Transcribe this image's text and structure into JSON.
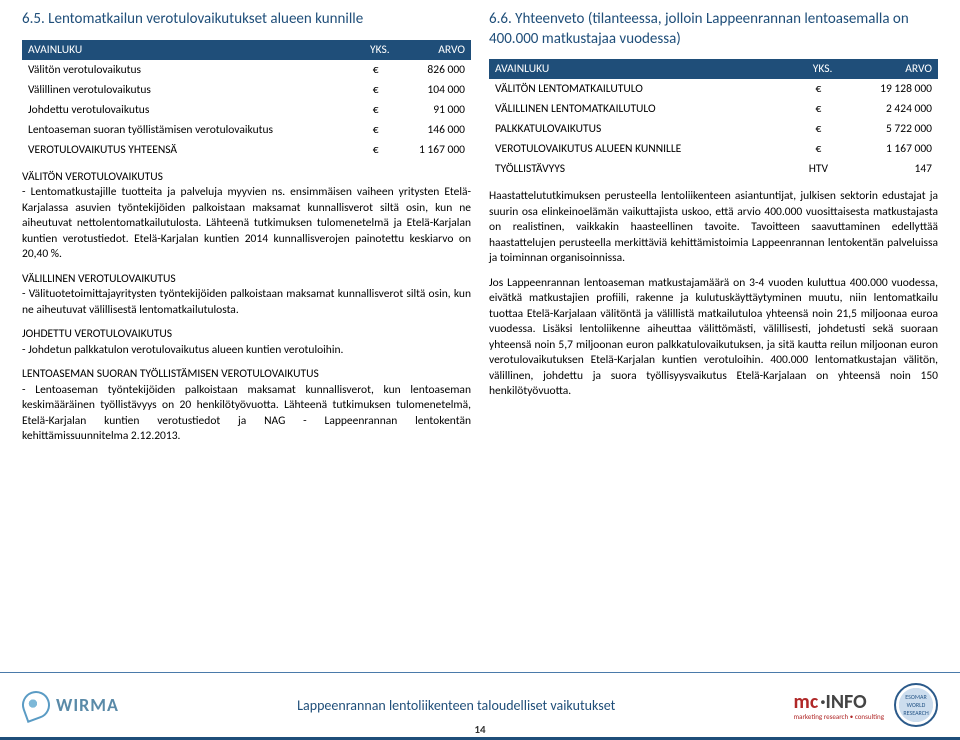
{
  "left": {
    "heading": "6.5. Lentomatkailun verotulovaikutukset alueen kunnille",
    "table": {
      "headers": [
        "AVAINLUKU",
        "YKS.",
        "ARVO"
      ],
      "rows": [
        [
          "Välitön verotulovaikutus",
          "€",
          "826 000"
        ],
        [
          "Välillinen verotulovaikutus",
          "€",
          "104 000"
        ],
        [
          "Johdettu verotulovaikutus",
          "€",
          "91 000"
        ],
        [
          "Lentoaseman suoran työllistämisen verotulovaikutus",
          "€",
          "146 000"
        ],
        [
          "VEROTULOVAIKUTUS YHTEENSÄ",
          "€",
          "1 167 000"
        ]
      ]
    },
    "p1_label": "VÄLITÖN VEROTULOVAIKUTUS",
    "p1": "- Lentomatkustajille tuotteita ja palveluja myyvien ns. ensimmäisen vaiheen yritysten Etelä-Karjalassa asuvien työntekijöiden palkoistaan maksamat kunnallisverot siltä osin, kun ne aiheutuvat nettolentomatkailutulosta. Lähteenä tutkimuksen tulomenetelmä ja Etelä-Karjalan kuntien verotustiedot. Etelä-Karjalan kuntien 2014 kunnallisverojen painotettu keskiarvo on 20,40 %.",
    "p2_label": "VÄLILLINEN VEROTULOVAIKUTUS",
    "p2": "- Välituotetoimittajayritysten työntekijöiden palkoistaan maksamat kunnallisverot siltä osin, kun ne aiheutuvat välillisestä lentomatkailutulosta.",
    "p3_label": "JOHDETTU VEROTULOVAIKUTUS",
    "p3": "- Johdetun palkkatulon verotulovaikutus alueen kuntien verotuloihin.",
    "p4_label": "LENTOASEMAN SUORAN TYÖLLISTÄMISEN VEROTULOVAIKUTUS",
    "p4": "- Lentoaseman työntekijöiden palkoistaan maksamat kunnallisverot, kun lentoaseman keskimääräinen työllistävyys on 20 henkilötyövuotta. Lähteenä tutkimuksen tulomenetelmä, Etelä-Karjalan kuntien verotustiedot ja NAG - Lappeenrannan lentokentän kehittämissuunnitelma 2.12.2013."
  },
  "right": {
    "heading": "6.6. Yhteenveto (tilanteessa, jolloin Lappeenrannan lentoasemalla on 400.000 matkustajaa vuodessa)",
    "table": {
      "headers": [
        "AVAINLUKU",
        "YKS.",
        "ARVO"
      ],
      "rows": [
        [
          "VÄLITÖN LENTOMATKAILUTULO",
          "€",
          "19 128 000"
        ],
        [
          "VÄLILLINEN LENTOMATKAILUTULO",
          "€",
          "2 424 000"
        ],
        [
          "PALKKATULOVAIKUTUS",
          "€",
          "5 722 000"
        ],
        [
          "VEROTULOVAIKUTUS ALUEEN KUNNILLE",
          "€",
          "1 167 000"
        ],
        [
          "TYÖLLISTÄVYYS",
          "HTV",
          "147"
        ]
      ]
    },
    "p1": "Haastattelututkimuksen perusteella lentoliikenteen asiantuntijat, julkisen sektorin edustajat ja suurin osa elinkeinoelämän vaikuttajista uskoo, että arvio 400.000 vuosittaisesta matkustajasta on realistinen, vaikkakin haasteellinen tavoite. Tavoitteen saavuttaminen edellyttää haastattelujen perusteella merkittäviä kehittämistoimia Lappeenrannan lentokentän palveluissa ja toiminnan organisoinnissa.",
    "p2": "Jos Lappeenrannan lentoaseman matkustajamäärä on 3-4 vuoden kuluttua 400.000 vuodessa, eivätkä matkustajien profiili, rakenne ja kulutuskäyttäytyminen muutu, niin lentomatkailu tuottaa Etelä-Karjalaan välitöntä ja välillistä matkailutuloa yhteensä noin 21,5 miljoonaa euroa vuodessa. Lisäksi lentoliikenne aiheuttaa välittömästi, välillisesti, johdetusti sekä suoraan yhteensä noin 5,7 miljoonan euron palkkatulovaikutuksen, ja sitä kautta reilun miljoonan euron verotulovaikutuksen Etelä-Karjalan kuntien verotuloihin. 400.000 lentomatkustajan välitön, välillinen, johdettu ja suora työllisyysvaikutus Etelä-Karjalaan on yhteensä noin 150 henkilötyövuotta."
  },
  "footer": {
    "wirma": "WIRMA",
    "title": "Lappeenrannan lentoliikenteen taloudelliset vaikutukset",
    "mc_mc": "mc",
    "mc_info": "·INFO",
    "mc_sub": "marketing research • consulting",
    "esomar": "ESOMAR WORLD RESEARCH",
    "pagenum": "14"
  },
  "colors": {
    "heading": "#1f4e79",
    "table_header_bg": "#1f4e79",
    "border": "#4a7aaa"
  }
}
